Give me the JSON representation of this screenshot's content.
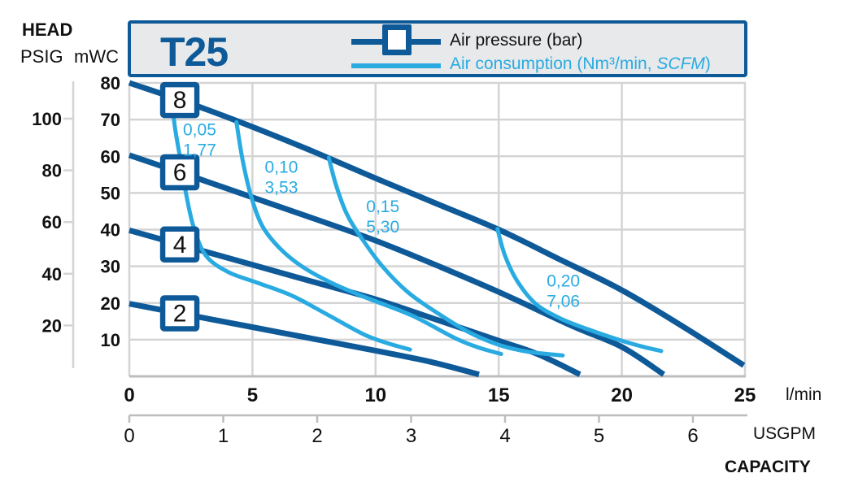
{
  "head_labels": {
    "head": "HEAD",
    "psig": "PSIG",
    "mwc": "mWC"
  },
  "legend": {
    "model": "T25",
    "pressure_label": "Air pressure (bar)",
    "consumption_label_prefix": "Air consumption (Nm³/min, ",
    "consumption_label_italic": "SCFM",
    "consumption_label_suffix": ")"
  },
  "colors": {
    "dark_blue": "#0e5a99",
    "light_blue": "#29abe2",
    "grid": "#d4d4d4",
    "axis_gray": "#bdbdbd",
    "text": "#111111",
    "legend_bg": "#e8e9ea"
  },
  "chart_data": {
    "type": "line",
    "title": "T25",
    "capacity_label": "CAPACITY",
    "x_axes": [
      {
        "unit": "l/min",
        "ticks": [
          0,
          5,
          10,
          15,
          20,
          25
        ],
        "range": [
          0,
          25
        ]
      },
      {
        "unit": "USGPM",
        "ticks": [
          0,
          1,
          2,
          3,
          4,
          5,
          6
        ],
        "range": [
          0,
          6.6
        ]
      }
    ],
    "y_axes": [
      {
        "unit": "mWC",
        "ticks": [
          10,
          20,
          30,
          40,
          50,
          60,
          70,
          80
        ],
        "range": [
          0,
          80
        ]
      },
      {
        "unit": "PSIG",
        "ticks": [
          20,
          40,
          60,
          80,
          100
        ],
        "range": [
          0,
          113
        ]
      }
    ],
    "legend_entries": [
      "Air pressure (bar)",
      "Air consumption (Nm³/min, SCFM)"
    ],
    "pressure_series": [
      {
        "label": "8",
        "marker_x": 2.05,
        "points": [
          [
            0,
            80
          ],
          [
            2.5,
            74.3
          ],
          [
            5,
            68
          ],
          [
            7.5,
            61.2
          ],
          [
            10,
            54
          ],
          [
            12.5,
            47
          ],
          [
            15,
            40
          ],
          [
            17.5,
            31.8
          ],
          [
            20,
            23.5
          ],
          [
            22.5,
            13.5
          ],
          [
            24.95,
            3
          ]
        ]
      },
      {
        "label": "6",
        "marker_x": 2.05,
        "points": [
          [
            0,
            60.3
          ],
          [
            2.5,
            54.6
          ],
          [
            5,
            48.8
          ],
          [
            7.5,
            43
          ],
          [
            10,
            37
          ],
          [
            12.5,
            30.2
          ],
          [
            15,
            23
          ],
          [
            18,
            13.7
          ],
          [
            20,
            8
          ],
          [
            21.7,
            0.5
          ]
        ]
      },
      {
        "label": "4",
        "marker_x": 2.05,
        "points": [
          [
            0,
            39.8
          ],
          [
            2.5,
            35.1
          ],
          [
            5,
            30.4
          ],
          [
            7.5,
            25.7
          ],
          [
            10,
            21
          ],
          [
            12.5,
            15.4
          ],
          [
            15,
            9.7
          ],
          [
            16.6,
            6
          ],
          [
            18.3,
            0.5
          ]
        ]
      },
      {
        "label": "2",
        "marker_x": 2.05,
        "points": [
          [
            0,
            19.8
          ],
          [
            2.5,
            16.6
          ],
          [
            5,
            13.4
          ],
          [
            7.5,
            10.2
          ],
          [
            10,
            7
          ],
          [
            12.2,
            4
          ],
          [
            14.2,
            0.5
          ]
        ]
      }
    ],
    "consumption_series": [
      {
        "label_nm3": "0,05",
        "label_scfm": "1,77",
        "label_at": [
          2.18,
          69.5
        ],
        "points": [
          [
            1.72,
            75.5
          ],
          [
            1.85,
            68
          ],
          [
            2.05,
            60
          ],
          [
            2.3,
            50
          ],
          [
            2.6,
            41
          ],
          [
            3.1,
            33
          ],
          [
            4,
            28.5
          ],
          [
            5.2,
            25.5
          ],
          [
            6.6,
            22
          ],
          [
            8,
            17
          ],
          [
            9.5,
            11.5
          ],
          [
            10.5,
            9
          ],
          [
            11.4,
            7.3
          ]
        ]
      },
      {
        "label_nm3": "0,10",
        "label_scfm": "3,53",
        "label_at": [
          5.5,
          59.3
        ],
        "points": [
          [
            4.35,
            69.3
          ],
          [
            4.6,
            59
          ],
          [
            4.95,
            49
          ],
          [
            5.4,
            41
          ],
          [
            6.1,
            35
          ],
          [
            7,
            30
          ],
          [
            8.2,
            25.5
          ],
          [
            9.6,
            21.5
          ],
          [
            11.5,
            16.5
          ],
          [
            13.2,
            10.5
          ],
          [
            14.2,
            7.8
          ],
          [
            15.1,
            6.1
          ]
        ]
      },
      {
        "label_nm3": "0,15",
        "label_scfm": "5,30",
        "label_at": [
          9.62,
          48.5
        ],
        "points": [
          [
            8.1,
            59.6
          ],
          [
            8.4,
            52
          ],
          [
            8.85,
            44
          ],
          [
            9.5,
            37
          ],
          [
            10.3,
            29.8
          ],
          [
            11.3,
            23
          ],
          [
            12.5,
            17.3
          ],
          [
            13.8,
            12
          ],
          [
            15,
            8.6
          ],
          [
            16.2,
            6.7
          ],
          [
            17.6,
            5.7
          ]
        ]
      },
      {
        "label_nm3": "0,20",
        "label_scfm": "7,06",
        "label_at": [
          16.95,
          28.2
        ],
        "points": [
          [
            14.95,
            40.2
          ],
          [
            15.25,
            33
          ],
          [
            15.75,
            26
          ],
          [
            16.5,
            19.8
          ],
          [
            17.5,
            15.8
          ],
          [
            18.8,
            12.4
          ],
          [
            20,
            9.7
          ],
          [
            20.9,
            8
          ],
          [
            21.6,
            6.9
          ]
        ]
      }
    ]
  }
}
